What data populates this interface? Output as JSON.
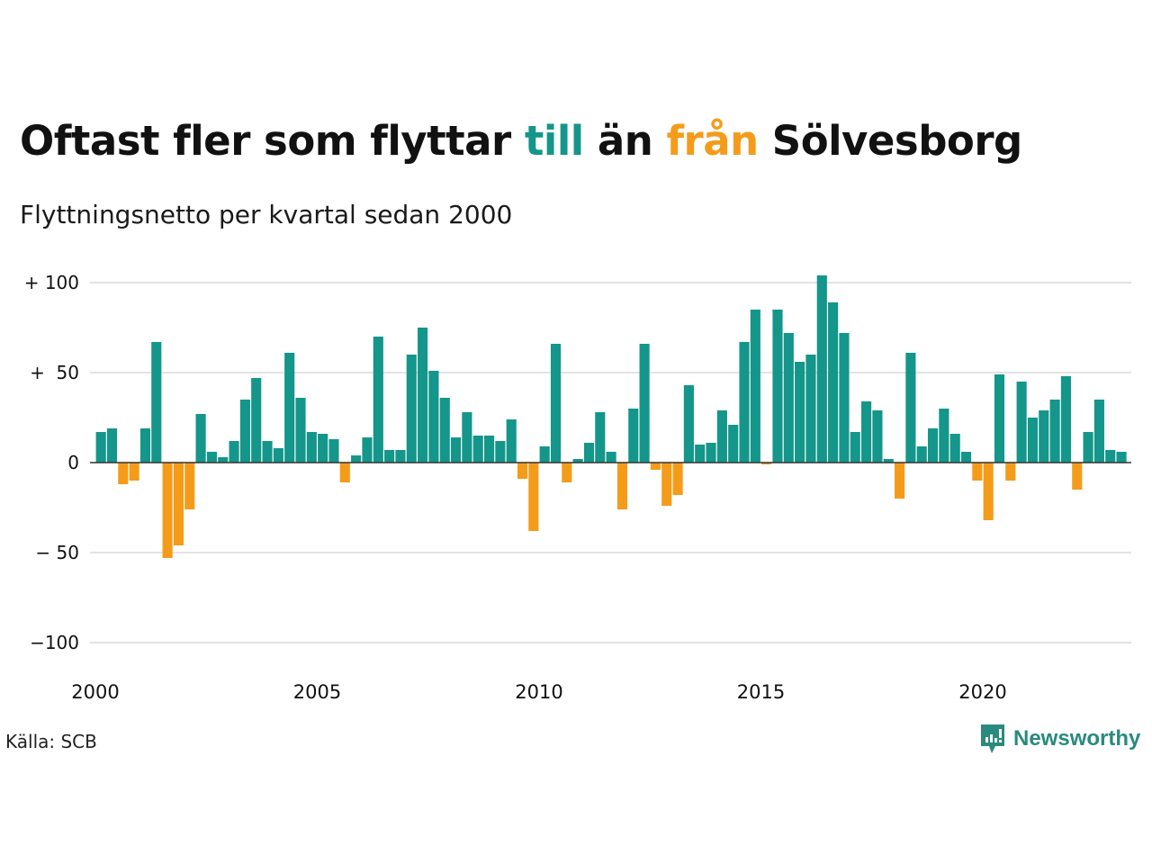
{
  "header": {
    "title_part1": "Oftast fler som flyttar ",
    "title_till": "till",
    "title_part2": " än ",
    "title_fran": "från",
    "title_part3": " Sölvesborg",
    "subtitle": "Flyttningsnetto per kvartal sedan 2000"
  },
  "footer": {
    "source": "Källa: SCB",
    "brand": "Newsworthy"
  },
  "colors": {
    "positive": "#14968a",
    "negative": "#f49c1a",
    "grid": "#e3e3e6",
    "brand": "#2a8a7e"
  },
  "chart_data": {
    "type": "bar",
    "title": "Oftast fler som flyttar till än från Sölvesborg",
    "subtitle": "Flyttningsnetto per kvartal sedan 2000",
    "xlabel": "",
    "ylabel": "",
    "ylim": [
      -100,
      100
    ],
    "grid": true,
    "x_start": "2000 Q1",
    "frequency": "quarterly",
    "y_ticks": [
      {
        "value": 100,
        "label": "+ 100"
      },
      {
        "value": 50,
        "label": "+  50"
      },
      {
        "value": 0,
        "label": "0"
      },
      {
        "value": -50,
        "label": "− 50"
      },
      {
        "value": -100,
        "label": "−100"
      }
    ],
    "x_ticks": [
      {
        "value": 2000,
        "label": "2000"
      },
      {
        "value": 2005,
        "label": "2005"
      },
      {
        "value": 2010,
        "label": "2010"
      },
      {
        "value": 2015,
        "label": "2015"
      },
      {
        "value": 2020,
        "label": "2020"
      }
    ],
    "values": [
      17,
      19,
      -12,
      -10,
      19,
      67,
      -53,
      -46,
      -26,
      27,
      6,
      3,
      12,
      35,
      47,
      12,
      8,
      61,
      36,
      17,
      16,
      13,
      -11,
      4,
      14,
      70,
      7,
      7,
      60,
      75,
      51,
      36,
      14,
      28,
      15,
      15,
      12,
      24,
      -9,
      -38,
      9,
      66,
      -11,
      2,
      11,
      28,
      6,
      -26,
      30,
      66,
      -4,
      -24,
      -18,
      43,
      10,
      11,
      29,
      21,
      67,
      85,
      -1,
      85,
      72,
      56,
      60,
      104,
      89,
      72,
      17,
      34,
      29,
      2,
      -20,
      61,
      9,
      19,
      30,
      16,
      6,
      -10,
      -32,
      49,
      -10,
      45,
      25,
      29,
      35,
      48,
      -15,
      17,
      35,
      7,
      6
    ]
  }
}
